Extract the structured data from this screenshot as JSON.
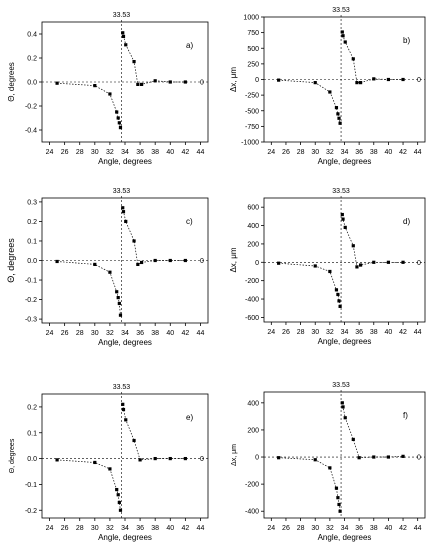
{
  "figure": {
    "chart_data": [
      {
        "panel": "a)",
        "type": "scatter",
        "ylabel": "Θ, degrees",
        "xlabel": "Angle, degrees",
        "xlim": [
          23,
          45
        ],
        "ylim": [
          -0.5,
          0.5
        ],
        "xticks": [
          24,
          26,
          28,
          30,
          32,
          34,
          36,
          38,
          40,
          42,
          44
        ],
        "yticks": [
          -0.4,
          -0.2,
          0.0,
          0.2,
          0.4
        ],
        "ytick_labels": [
          "-0.4",
          "-0.2",
          "0.0",
          "0.2",
          "0.4"
        ],
        "vline": 33.53,
        "vline_label": "33.53",
        "zero_label": "0",
        "left_branch": [
          [
            25,
            -0.01
          ],
          [
            30,
            -0.03
          ],
          [
            32,
            -0.1
          ],
          [
            32.9,
            -0.25
          ],
          [
            33.1,
            -0.3
          ],
          [
            33.25,
            -0.34
          ],
          [
            33.4,
            -0.38
          ]
        ],
        "right_branch": [
          [
            33.7,
            0.41
          ],
          [
            33.8,
            0.38
          ],
          [
            34.1,
            0.31
          ],
          [
            35.2,
            0.17
          ],
          [
            35.7,
            -0.02
          ],
          [
            36.2,
            -0.02
          ],
          [
            38,
            0.01
          ],
          [
            40,
            0.0
          ],
          [
            42,
            0.0
          ]
        ]
      },
      {
        "panel": "b)",
        "type": "scatter",
        "ylabel": "Δx, μm",
        "xlabel": "Angle, degrees",
        "xlim": [
          23,
          45
        ],
        "ylim": [
          -1000,
          1000
        ],
        "xticks": [
          24,
          26,
          28,
          30,
          32,
          34,
          36,
          38,
          40,
          42,
          44
        ],
        "yticks": [
          -1000,
          -750,
          -500,
          -250,
          0,
          250,
          500,
          750,
          1000
        ],
        "ytick_labels": [
          "-1000",
          "-750",
          "-500",
          "-250",
          "0",
          "250",
          "500",
          "750",
          "1000"
        ],
        "vline": 33.53,
        "vline_label": "33.53",
        "zero_label": "0",
        "left_branch": [
          [
            25,
            -10
          ],
          [
            30,
            -50
          ],
          [
            32,
            -200
          ],
          [
            32.9,
            -450
          ],
          [
            33.1,
            -550
          ],
          [
            33.25,
            -620
          ],
          [
            33.4,
            -700
          ]
        ],
        "right_branch": [
          [
            33.7,
            760
          ],
          [
            33.8,
            700
          ],
          [
            34.1,
            600
          ],
          [
            35.2,
            330
          ],
          [
            35.7,
            -50
          ],
          [
            36.2,
            -50
          ],
          [
            38,
            10
          ],
          [
            40,
            0
          ],
          [
            42,
            0
          ]
        ]
      },
      {
        "panel": "c)",
        "type": "scatter",
        "ylabel": "Θ, degrees",
        "xlabel": "Angle, degrees",
        "xlim": [
          23,
          45
        ],
        "ylim": [
          -0.32,
          0.32
        ],
        "xticks": [
          24,
          26,
          28,
          30,
          32,
          34,
          36,
          38,
          40,
          42,
          44
        ],
        "yticks": [
          -0.3,
          -0.2,
          -0.1,
          0.0,
          0.1,
          0.2,
          0.3
        ],
        "ytick_labels": [
          "-0.3",
          "-0.2",
          "-0.1",
          "0.0",
          "0.1",
          "0.2",
          "0.3"
        ],
        "vline": 33.53,
        "vline_label": "33.53",
        "zero_label": "0",
        "left_branch": [
          [
            25,
            -0.005
          ],
          [
            30,
            -0.02
          ],
          [
            32,
            -0.06
          ],
          [
            32.9,
            -0.16
          ],
          [
            33.1,
            -0.19
          ],
          [
            33.25,
            -0.22
          ],
          [
            33.4,
            -0.28
          ]
        ],
        "right_branch": [
          [
            33.7,
            0.27
          ],
          [
            33.8,
            0.25
          ],
          [
            34.1,
            0.2
          ],
          [
            35.2,
            0.1
          ],
          [
            35.7,
            -0.02
          ],
          [
            36.2,
            -0.01
          ],
          [
            38,
            0.0
          ],
          [
            40,
            0.0
          ],
          [
            42,
            0.0
          ]
        ]
      },
      {
        "panel": "d)",
        "type": "scatter",
        "ylabel": "Δx, μm",
        "xlabel": "Angle, degrees",
        "xlim": [
          23,
          45
        ],
        "ylim": [
          -650,
          700
        ],
        "xticks": [
          24,
          26,
          28,
          30,
          32,
          34,
          36,
          38,
          40,
          42,
          44
        ],
        "yticks": [
          -600,
          -400,
          -200,
          0,
          200,
          400,
          600
        ],
        "ytick_labels": [
          "-600",
          "-400",
          "-200",
          "0",
          "200",
          "400",
          "600"
        ],
        "vline": 33.53,
        "vline_label": "33.53",
        "zero_label": "0",
        "left_branch": [
          [
            25,
            -10
          ],
          [
            30,
            -40
          ],
          [
            32,
            -100
          ],
          [
            32.9,
            -300
          ],
          [
            33.1,
            -350
          ],
          [
            33.25,
            -420
          ],
          [
            33.4,
            -480
          ]
        ],
        "right_branch": [
          [
            33.7,
            520
          ],
          [
            33.8,
            470
          ],
          [
            34.1,
            380
          ],
          [
            35.2,
            180
          ],
          [
            35.7,
            -50
          ],
          [
            36.2,
            -30
          ],
          [
            38,
            0
          ],
          [
            40,
            0
          ],
          [
            42,
            0
          ]
        ]
      },
      {
        "panel": "e)",
        "type": "scatter",
        "ylabel": "Θ, degrees",
        "xlabel": "Angle, degrees",
        "xlim": [
          23,
          45
        ],
        "ylim": [
          -0.23,
          0.25
        ],
        "xticks": [
          24,
          26,
          28,
          30,
          32,
          34,
          36,
          38,
          40,
          42,
          44
        ],
        "yticks": [
          -0.2,
          -0.1,
          0.0,
          0.1,
          0.2
        ],
        "ytick_labels": [
          "-0.2",
          "-0.1",
          "0.0",
          "0.1",
          "0.2"
        ],
        "vline": 33.53,
        "vline_label": "33.53",
        "zero_label": "0",
        "left_branch": [
          [
            25,
            -0.005
          ],
          [
            30,
            -0.015
          ],
          [
            32,
            -0.04
          ],
          [
            32.9,
            -0.12
          ],
          [
            33.1,
            -0.14
          ],
          [
            33.25,
            -0.17
          ],
          [
            33.4,
            -0.2
          ]
        ],
        "right_branch": [
          [
            33.7,
            0.21
          ],
          [
            33.8,
            0.19
          ],
          [
            34.1,
            0.15
          ],
          [
            35.2,
            0.07
          ],
          [
            36,
            -0.005
          ],
          [
            38,
            0.0
          ],
          [
            40,
            0.0
          ],
          [
            42,
            0.0
          ]
        ]
      },
      {
        "panel": "f)",
        "type": "scatter",
        "ylabel": "Δx, μm",
        "xlabel": "Angle, degrees",
        "xlim": [
          23,
          45
        ],
        "ylim": [
          -450,
          480
        ],
        "xticks": [
          24,
          26,
          28,
          30,
          32,
          34,
          36,
          38,
          40,
          42,
          44
        ],
        "yticks": [
          -400,
          -200,
          0,
          200,
          400
        ],
        "ytick_labels": [
          "-400",
          "-200",
          "0",
          "200",
          "400"
        ],
        "vline": 33.53,
        "vline_label": "33.53",
        "zero_label": "0",
        "left_branch": [
          [
            25,
            -5
          ],
          [
            30,
            -20
          ],
          [
            32,
            -80
          ],
          [
            32.9,
            -230
          ],
          [
            33.1,
            -300
          ],
          [
            33.25,
            -350
          ],
          [
            33.4,
            -400
          ]
        ],
        "right_branch": [
          [
            33.7,
            400
          ],
          [
            33.8,
            370
          ],
          [
            34.1,
            290
          ],
          [
            35.2,
            130
          ],
          [
            36,
            -5
          ],
          [
            38,
            0
          ],
          [
            40,
            0
          ],
          [
            42,
            5
          ]
        ]
      }
    ]
  }
}
